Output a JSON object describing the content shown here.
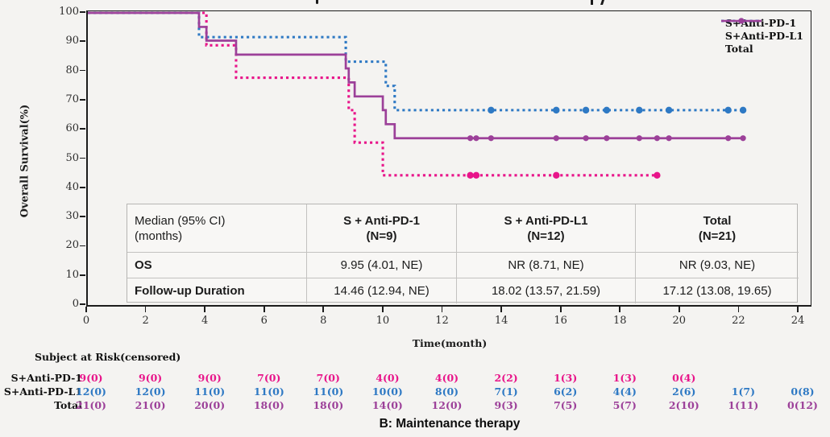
{
  "colors": {
    "background": "#f4f3f1",
    "axis": "#1c1c1c",
    "pink": "#e8158a",
    "blue": "#2e79c4",
    "purple": "#9c4099",
    "table_border": "#b6b5b3",
    "table_bg": "#f8f7f5"
  },
  "y_axis": {
    "label": "Overall Survival(%)",
    "ticks": [
      100,
      90,
      80,
      70,
      60,
      50,
      40,
      30,
      20,
      10,
      0
    ]
  },
  "x_axis": {
    "label": "Time(month)",
    "ticks": [
      0,
      2,
      4,
      6,
      8,
      10,
      12,
      14,
      16,
      18,
      20,
      22,
      24
    ]
  },
  "legend": {
    "items": [
      {
        "label": "S+Anti-PD-1",
        "color": "#e8158a",
        "dashed": true
      },
      {
        "label": "S+Anti-PD-L1",
        "color": "#2e79c4",
        "dashed": true
      },
      {
        "label": "Total",
        "color": "#9c4099",
        "dashed": false
      }
    ]
  },
  "chart_data": {
    "type": "line",
    "subtype": "kaplan-meier-step",
    "title": "",
    "xlabel": "Time(month)",
    "ylabel": "Overall Survival(%)",
    "xlim": [
      0,
      24
    ],
    "ylim": [
      0,
      100
    ],
    "grid": false,
    "legend_position": "top-right",
    "series": [
      {
        "name": "S+Anti-PD-1",
        "color": "#e8158a",
        "style": "dotted",
        "steps": [
          [
            0,
            100
          ],
          [
            4.0,
            88.9
          ],
          [
            5.0,
            77.8
          ],
          [
            8.8,
            66.7
          ],
          [
            9.0,
            55.6
          ],
          [
            9.95,
            44.4
          ]
        ],
        "end_time": 19.2,
        "censored": [
          [
            12.9,
            44.4
          ],
          [
            13.1,
            44.4
          ],
          [
            15.8,
            44.4
          ],
          [
            19.2,
            44.4
          ]
        ]
      },
      {
        "name": "S+Anti-PD-L1",
        "color": "#2e79c4",
        "style": "dotted",
        "steps": [
          [
            0,
            100
          ],
          [
            3.75,
            91.7
          ],
          [
            8.7,
            83.3
          ],
          [
            10.05,
            75.0
          ],
          [
            10.35,
            66.7
          ]
        ],
        "end_time": 22.1,
        "censored": [
          [
            13.6,
            66.7
          ],
          [
            15.8,
            66.7
          ],
          [
            16.8,
            66.7
          ],
          [
            17.5,
            66.7
          ],
          [
            18.6,
            66.7
          ],
          [
            19.6,
            66.7
          ],
          [
            21.6,
            66.7
          ],
          [
            22.1,
            66.7
          ]
        ]
      },
      {
        "name": "Total",
        "color": "#9c4099",
        "style": "solid",
        "steps": [
          [
            0,
            100
          ],
          [
            3.75,
            95.2
          ],
          [
            4.0,
            90.5
          ],
          [
            5.0,
            85.7
          ],
          [
            8.7,
            81.0
          ],
          [
            8.8,
            76.2
          ],
          [
            9.0,
            71.4
          ],
          [
            9.95,
            66.7
          ],
          [
            10.05,
            61.9
          ],
          [
            10.35,
            57.1
          ]
        ],
        "end_time": 22.1,
        "censored": [
          [
            12.9,
            57.1
          ],
          [
            13.1,
            57.1
          ],
          [
            13.6,
            57.1
          ],
          [
            15.8,
            57.1
          ],
          [
            16.8,
            57.1
          ],
          [
            17.5,
            57.1
          ],
          [
            18.6,
            57.1
          ],
          [
            19.2,
            57.1
          ],
          [
            19.6,
            57.1
          ],
          [
            21.6,
            57.1
          ],
          [
            22.1,
            57.1
          ]
        ]
      }
    ]
  },
  "median_table": {
    "corner_lines": [
      "Median (95% CI)",
      "(months)"
    ],
    "columns": [
      {
        "title": "S + Anti-PD-1",
        "n": "(N=9)"
      },
      {
        "title": "S + Anti-PD-L1",
        "n": "(N=12)"
      },
      {
        "title": "Total",
        "n": "(N=21)"
      }
    ],
    "rows": [
      {
        "label": "OS",
        "values": [
          "9.95 (4.01, NE)",
          "NR (8.71, NE)",
          "NR (9.03, NE)"
        ]
      },
      {
        "label": "Follow-up Duration",
        "values": [
          "14.46 (12.94, NE)",
          "18.02 (13.57, 21.59)",
          "17.12 (13.08, 19.65)"
        ]
      }
    ]
  },
  "risk_table": {
    "title": "Subject at Risk(censored)",
    "time_points": [
      0,
      2,
      4,
      6,
      8,
      10,
      12,
      14,
      16,
      18,
      20,
      22,
      24
    ],
    "rows": [
      {
        "label": "S+Anti-PD-1",
        "color": "#e8158a",
        "values": [
          "9(0)",
          "9(0)",
          "9(0)",
          "7(0)",
          "7(0)",
          "4(0)",
          "4(0)",
          "2(2)",
          "1(3)",
          "1(3)",
          "0(4)",
          "",
          ""
        ]
      },
      {
        "label": "S+Anti-PD-L1",
        "color": "#2e79c4",
        "values": [
          "12(0)",
          "12(0)",
          "11(0)",
          "11(0)",
          "11(0)",
          "10(0)",
          "8(0)",
          "7(1)",
          "6(2)",
          "4(4)",
          "2(6)",
          "1(7)",
          "0(8)"
        ]
      },
      {
        "label": "Total",
        "color": "#9c4099",
        "values": [
          "21(0)",
          "21(0)",
          "20(0)",
          "18(0)",
          "18(0)",
          "14(0)",
          "12(0)",
          "9(3)",
          "7(5)",
          "5(7)",
          "2(10)",
          "1(11)",
          "0(12)"
        ]
      }
    ]
  },
  "caption": "B: Maintenance therapy"
}
